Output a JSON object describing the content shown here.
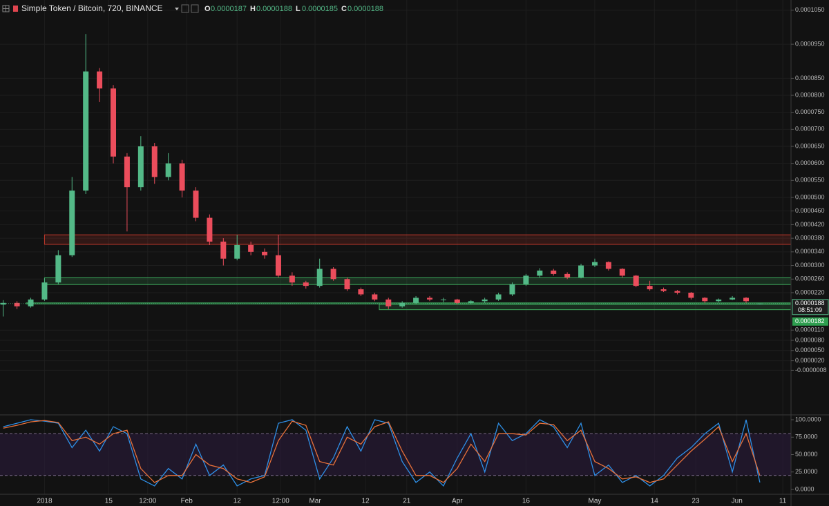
{
  "header": {
    "symbol": "Simple Token / Bitcoin, 720, BINANCE",
    "ohlc_labels": [
      "O",
      "H",
      "L",
      "C"
    ]
  },
  "chart_data": {
    "type": "candlestick",
    "dates": [
      "2017-12-23",
      "2017-12-26",
      "2017-12-29",
      "2018-01-01",
      "2018-01-04",
      "2018-01-07",
      "2018-01-10",
      "2018-01-13",
      "2018-01-16",
      "2018-01-19",
      "2018-01-22",
      "2018-01-25",
      "2018-01-28",
      "2018-01-31",
      "2018-02-03",
      "2018-02-06",
      "2018-02-09",
      "2018-02-12",
      "2018-02-15",
      "2018-02-18",
      "2018-02-21",
      "2018-02-24",
      "2018-02-27",
      "2018-03-02",
      "2018-03-05",
      "2018-03-08",
      "2018-03-11",
      "2018-03-14",
      "2018-03-17",
      "2018-03-20",
      "2018-03-23",
      "2018-03-26",
      "2018-03-29",
      "2018-04-01",
      "2018-04-04",
      "2018-04-07",
      "2018-04-10",
      "2018-04-13",
      "2018-04-16",
      "2018-04-19",
      "2018-04-22",
      "2018-04-25",
      "2018-04-28",
      "2018-05-01",
      "2018-05-04",
      "2018-05-07",
      "2018-05-10",
      "2018-05-13",
      "2018-05-16",
      "2018-05-19",
      "2018-05-22",
      "2018-05-25",
      "2018-05-28",
      "2018-05-31",
      "2018-06-03",
      "2018-06-06"
    ],
    "candles": {
      "open": [
        1.85e-05,
        1.9e-05,
        1.8e-05,
        2e-05,
        2.5e-05,
        3.3e-05,
        5.2e-05,
        8.7e-05,
        8.2e-05,
        6.2e-05,
        5.3e-05,
        6.5e-05,
        5.6e-05,
        6e-05,
        5.2e-05,
        4.4e-05,
        3.7e-05,
        3.2e-05,
        3.6e-05,
        3.4e-05,
        3.3e-05,
        2.7e-05,
        2.5e-05,
        2.4e-05,
        2.9e-05,
        2.6e-05,
        2.3e-05,
        2.15e-05,
        2e-05,
        1.8e-05,
        1.9e-05,
        2.05e-05,
        2e-05,
        2e-05,
        1.9e-05,
        1.95e-05,
        2e-05,
        2.15e-05,
        2.45e-05,
        2.7e-05,
        2.85e-05,
        2.75e-05,
        2.65e-05,
        3e-05,
        3.1e-05,
        2.9e-05,
        2.7e-05,
        2.4e-05,
        2.3e-05,
        2.25e-05,
        2.2e-05,
        2.05e-05,
        1.95e-05,
        2e-05,
        2.05e-05,
        1.87e-05
      ],
      "high": [
        1.98e-05,
        1.95e-05,
        2.05e-05,
        2.62e-05,
        3.45e-05,
        5.6e-05,
        9.8e-05,
        8.8e-05,
        8.3e-05,
        6.3e-05,
        6.8e-05,
        6.6e-05,
        6.3e-05,
        6.1e-05,
        5.3e-05,
        4.5e-05,
        3.8e-05,
        3.9e-05,
        3.7e-05,
        3.5e-05,
        3.9e-05,
        2.8e-05,
        2.55e-05,
        3.2e-05,
        2.95e-05,
        2.65e-05,
        2.35e-05,
        2.2e-05,
        2.05e-05,
        1.95e-05,
        2.1e-05,
        2.1e-05,
        2.05e-05,
        2.02e-05,
        1.98e-05,
        2.05e-05,
        2.2e-05,
        2.5e-05,
        2.75e-05,
        2.92e-05,
        2.9e-05,
        2.8e-05,
        3.05e-05,
        3.2e-05,
        3.12e-05,
        2.92e-05,
        2.72e-05,
        2.55e-05,
        2.35e-05,
        2.28e-05,
        2.22e-05,
        2.07e-05,
        2.03e-05,
        2.1e-05,
        2.07e-05,
        1.88e-05
      ],
      "low": [
        1.5e-05,
        1.72e-05,
        1.76e-05,
        1.96e-05,
        2.45e-05,
        3.25e-05,
        5.1e-05,
        7.8e-05,
        6e-05,
        4e-05,
        5.2e-05,
        5.4e-05,
        5.5e-05,
        5e-05,
        4.3e-05,
        3.6e-05,
        3e-05,
        3.15e-05,
        3.3e-05,
        3.2e-05,
        2.65e-05,
        2.4e-05,
        2.32e-05,
        2.35e-05,
        2.55e-05,
        2.25e-05,
        2.1e-05,
        1.95e-05,
        1.72e-05,
        1.76e-05,
        1.86e-05,
        1.95e-05,
        1.92e-05,
        1.86e-05,
        1.86e-05,
        1.9e-05,
        1.96e-05,
        2.1e-05,
        2.4e-05,
        2.65e-05,
        2.7e-05,
        2.6e-05,
        2.62e-05,
        2.95e-05,
        2.85e-05,
        2.65e-05,
        2.36e-05,
        2.26e-05,
        2.22e-05,
        2.15e-05,
        2e-05,
        1.9e-05,
        1.92e-05,
        1.98e-05,
        1.9e-05,
        1.85e-05
      ],
      "close": [
        1.9e-05,
        1.8e-05,
        2e-05,
        2.5e-05,
        3.3e-05,
        5.2e-05,
        8.7e-05,
        8.2e-05,
        6.2e-05,
        5.3e-05,
        6.5e-05,
        5.6e-05,
        6e-05,
        5.2e-05,
        4.4e-05,
        3.7e-05,
        3.2e-05,
        3.6e-05,
        3.4e-05,
        3.3e-05,
        2.7e-05,
        2.5e-05,
        2.4e-05,
        2.9e-05,
        2.6e-05,
        2.3e-05,
        2.15e-05,
        2e-05,
        1.8e-05,
        1.9e-05,
        2.05e-05,
        2e-05,
        2e-05,
        1.9e-05,
        1.95e-05,
        2e-05,
        2.15e-05,
        2.45e-05,
        2.7e-05,
        2.85e-05,
        2.75e-05,
        2.65e-05,
        3e-05,
        3.1e-05,
        2.9e-05,
        2.7e-05,
        2.4e-05,
        2.3e-05,
        2.25e-05,
        2.2e-05,
        2.05e-05,
        1.95e-05,
        2e-05,
        2.05e-05,
        1.95e-05,
        1.88e-05
      ]
    },
    "up_color": "#53b987",
    "down_color": "#eb4d5c",
    "xlim": [
      "2017-12-22T07:00",
      "2018-06-12T19:00"
    ],
    "xticks": [
      {
        "value": "2018-01-01",
        "label": "2018"
      },
      {
        "value": "2018-01-15",
        "label": "15"
      },
      {
        "value": "2018-01-23T12:00",
        "label": "12:00"
      },
      {
        "value": "2018-02-01",
        "label": "Feb"
      },
      {
        "value": "2018-02-12",
        "label": "12"
      },
      {
        "value": "2018-02-21T12:00",
        "label": "12:00"
      },
      {
        "value": "2018-03-01",
        "label": "Mar"
      },
      {
        "value": "2018-03-12",
        "label": "12"
      },
      {
        "value": "2018-03-21",
        "label": "21"
      },
      {
        "value": "2018-04-01",
        "label": "Apr"
      },
      {
        "value": "2018-04-16",
        "label": "16"
      },
      {
        "value": "2018-05-01",
        "label": "May"
      },
      {
        "value": "2018-05-14",
        "label": "14"
      },
      {
        "value": "2018-05-23",
        "label": "23"
      },
      {
        "value": "2018-06-01",
        "label": "Jun"
      },
      {
        "value": "2018-06-11",
        "label": "11"
      }
    ],
    "ylim": [
      -1.37e-05,
      0.000108
    ],
    "yticks": [
      {
        "value": 0.000105,
        "label": "0.0001050"
      },
      {
        "value": 9.5e-05,
        "label": "0.0000950"
      },
      {
        "value": 8.5e-05,
        "label": "0.0000850"
      },
      {
        "value": 8e-05,
        "label": "0.0000800"
      },
      {
        "value": 7.5e-05,
        "label": "0.0000750"
      },
      {
        "value": 7e-05,
        "label": "0.0000700"
      },
      {
        "value": 6.5e-05,
        "label": "0.0000650"
      },
      {
        "value": 6e-05,
        "label": "0.0000600"
      },
      {
        "value": 5.5e-05,
        "label": "0.0000550"
      },
      {
        "value": 5e-05,
        "label": "0.0000500"
      },
      {
        "value": 4.6e-05,
        "label": "0.0000460"
      },
      {
        "value": 4.2e-05,
        "label": "0.0000420"
      },
      {
        "value": 3.8e-05,
        "label": "0.0000380"
      },
      {
        "value": 3.4e-05,
        "label": "0.0000340"
      },
      {
        "value": 3e-05,
        "label": "0.0000300"
      },
      {
        "value": 2.6e-05,
        "label": "0.0000260"
      },
      {
        "value": 2.2e-05,
        "label": "0.0000220"
      },
      {
        "value": 1.1e-05,
        "label": "0.0000110"
      },
      {
        "value": 8e-06,
        "label": "0.0000080"
      },
      {
        "value": 5e-06,
        "label": "0.0000050"
      },
      {
        "value": 2e-06,
        "label": "0.0000020"
      },
      {
        "value": -8e-07,
        "label": "-0.0000008"
      }
    ],
    "grid": true,
    "last_price_countdown": "08:51:09",
    "marker_price": 1.82e-05,
    "zones": [
      {
        "top": 3.9e-05,
        "bottom": 3.62e-05,
        "start": "2018-01-01",
        "color": "#c0392b"
      },
      {
        "top": 2.64e-05,
        "bottom": 2.44e-05,
        "start": "2018-01-01",
        "color": "#3fae5f"
      },
      {
        "top": 1.9e-05,
        "bottom": 1.87e-05,
        "start": "2017-12-28",
        "color": "#3fae5f"
      },
      {
        "top": 1.86e-05,
        "bottom": 1.7e-05,
        "start": "2018-03-15",
        "color": "#3fae5f"
      }
    ],
    "oscillator": {
      "type": "line",
      "ylim": [
        -5,
        105
      ],
      "yticks": [
        {
          "value": 100,
          "label": "100.0000"
        },
        {
          "value": 75,
          "label": "75.0000"
        },
        {
          "value": 50,
          "label": "50.0000"
        },
        {
          "value": 25,
          "label": "25.0000"
        },
        {
          "value": 0,
          "label": "0.0000"
        }
      ],
      "bands": [
        80,
        20
      ],
      "band_color": "#2a1a3a",
      "series": [
        {
          "color": "#2e8fe6",
          "values": [
            90,
            95,
            100,
            98,
            95,
            60,
            85,
            55,
            90,
            80,
            15,
            5,
            30,
            15,
            65,
            20,
            35,
            5,
            15,
            20,
            95,
            100,
            85,
            15,
            45,
            90,
            55,
            100,
            95,
            40,
            10,
            25,
            5,
            45,
            80,
            25,
            95,
            70,
            80,
            100,
            90,
            60,
            95,
            20,
            35,
            10,
            20,
            5,
            20,
            45,
            60,
            80,
            95,
            25,
            100,
            10
          ]
        },
        {
          "color": "#e8713a",
          "values": [
            88,
            92,
            97,
            99,
            96,
            70,
            75,
            65,
            80,
            85,
            30,
            10,
            20,
            20,
            50,
            35,
            30,
            15,
            10,
            18,
            70,
            98,
            92,
            40,
            35,
            75,
            65,
            90,
            97,
            55,
            20,
            20,
            10,
            30,
            65,
            40,
            80,
            80,
            78,
            95,
            93,
            70,
            85,
            40,
            30,
            15,
            18,
            10,
            15,
            35,
            55,
            72,
            90,
            40,
            80,
            20
          ]
        }
      ]
    }
  }
}
